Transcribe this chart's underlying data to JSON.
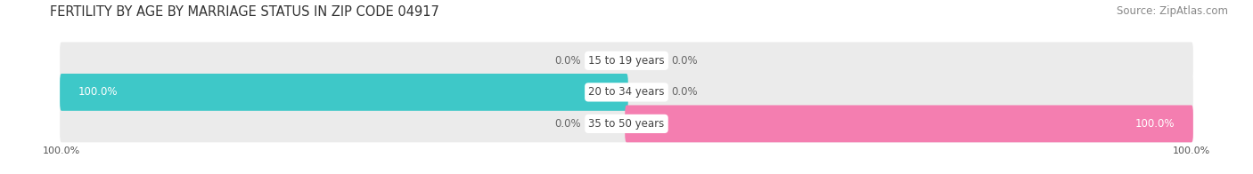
{
  "title": "FERTILITY BY AGE BY MARRIAGE STATUS IN ZIP CODE 04917",
  "source": "Source: ZipAtlas.com",
  "categories": [
    "15 to 19 years",
    "20 to 34 years",
    "35 to 50 years"
  ],
  "married": [
    0.0,
    100.0,
    0.0
  ],
  "unmarried": [
    0.0,
    0.0,
    100.0
  ],
  "married_color": "#3ec8c8",
  "unmarried_color": "#f47eb0",
  "bar_bg_color": "#ebebeb",
  "bar_height": 0.62,
  "xlim": 100.0,
  "title_fontsize": 10.5,
  "source_fontsize": 8.5,
  "label_fontsize": 8.5,
  "category_fontsize": 8.5,
  "legend_fontsize": 9,
  "axis_label_fontsize": 8,
  "background_color": "#ffffff",
  "bar_gap": 0.15
}
